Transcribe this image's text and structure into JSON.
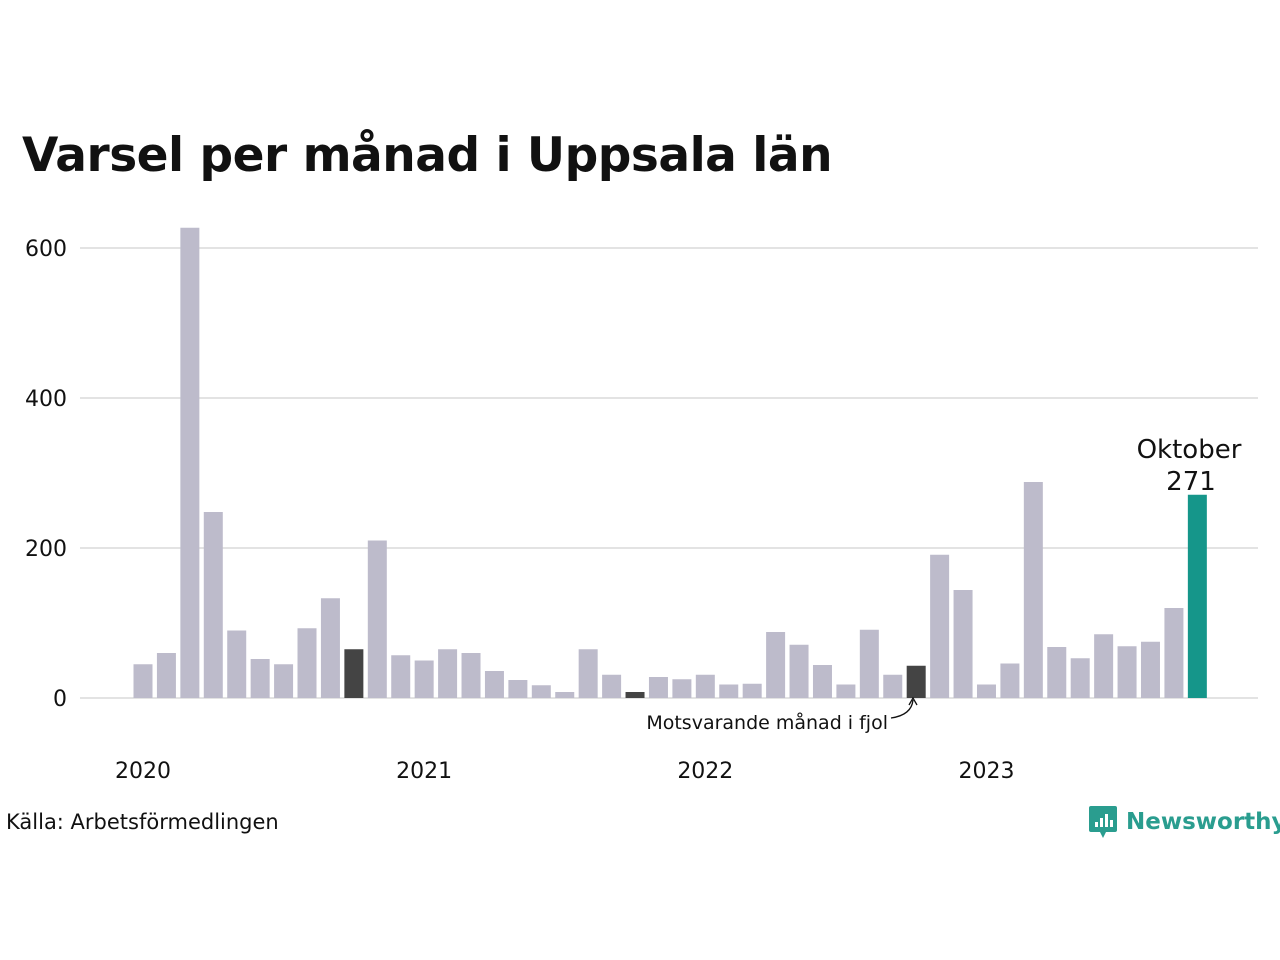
{
  "title": "Varsel per månad i Uppsala län",
  "source": "Källa: Arbetsförmedlingen",
  "brand": {
    "name": "Newsworthy",
    "icon": "newsworthy-logo-icon",
    "color": "#2a9d8f"
  },
  "annotation": {
    "text": "Motsvarande månad i fjol"
  },
  "highlight": {
    "month": "Oktober",
    "value": "271"
  },
  "colors": {
    "bar": "#bdbbcb",
    "same_month_last_year": "#444444",
    "current": "#15968a",
    "grid": "#e3e3e3"
  },
  "chart_data": {
    "type": "bar",
    "title": "Varsel per månad i Uppsala län",
    "xlabel": "",
    "ylabel": "",
    "ylim": [
      0,
      640
    ],
    "y_ticks": [
      0,
      200,
      400,
      600
    ],
    "x_tick_labels": [
      "2020",
      "2021",
      "2022",
      "2023"
    ],
    "grid": true,
    "categories": [
      "2020-01",
      "2020-02",
      "2020-03",
      "2020-04",
      "2020-05",
      "2020-06",
      "2020-07",
      "2020-08",
      "2020-09",
      "2020-10",
      "2020-11",
      "2020-12",
      "2021-01",
      "2021-02",
      "2021-03",
      "2021-04",
      "2021-05",
      "2021-06",
      "2021-07",
      "2021-08",
      "2021-09",
      "2021-10",
      "2021-11",
      "2021-12",
      "2022-01",
      "2022-02",
      "2022-03",
      "2022-04",
      "2022-05",
      "2022-06",
      "2022-07",
      "2022-08",
      "2022-09",
      "2022-10",
      "2022-11",
      "2022-12",
      "2023-01",
      "2023-02",
      "2023-03",
      "2023-04",
      "2023-05",
      "2023-06",
      "2023-07",
      "2023-08",
      "2023-09",
      "2023-10"
    ],
    "values": [
      45,
      60,
      627,
      248,
      90,
      52,
      45,
      93,
      133,
      65,
      210,
      57,
      50,
      65,
      60,
      36,
      24,
      17,
      8,
      65,
      31,
      8,
      28,
      25,
      31,
      18,
      19,
      88,
      71,
      44,
      18,
      91,
      31,
      43,
      191,
      144,
      18,
      46,
      288,
      68,
      53,
      85,
      69,
      75,
      120,
      271
    ],
    "same_month_last_year": [
      "2020-10",
      "2021-10",
      "2022-10"
    ],
    "current": "2023-10"
  }
}
